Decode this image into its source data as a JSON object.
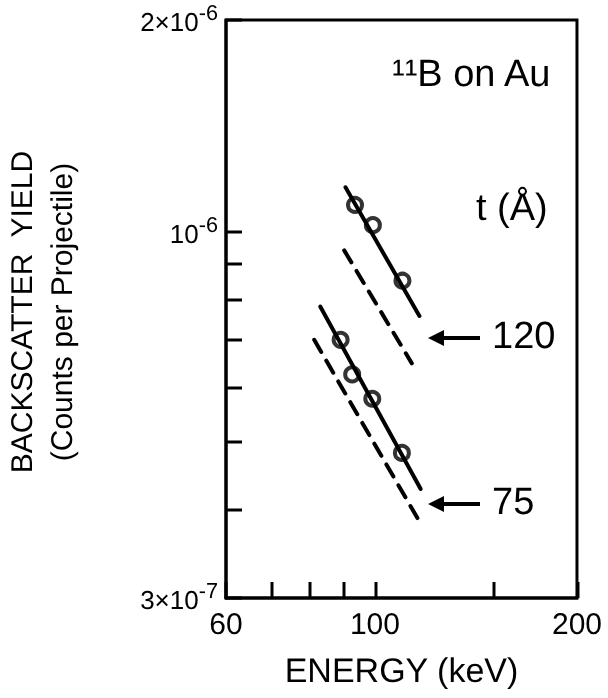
{
  "chart_data": {
    "type": "scatter",
    "xlabel": "ENERGY (keV)",
    "ylabel": "BACKSCATTER  YIELD\n(Counts per Projectile)",
    "log": "xy",
    "grid": false,
    "xlim": [
      60,
      200
    ],
    "xticks": [
      60,
      {
        "value": 70,
        "label": null
      },
      {
        "value": 80,
        "label": null
      },
      {
        "value": 90,
        "label": null
      },
      100,
      {
        "value": 150,
        "label": null
      },
      200
    ],
    "ylim": [
      3e-07,
      2e-06
    ],
    "yticks": [
      {
        "value": 3e-07,
        "label": "3×10$^{-7}$"
      },
      {
        "value": 4e-07,
        "label": null
      },
      {
        "value": 5e-07,
        "label": null
      },
      {
        "value": 6e-07,
        "label": null
      },
      {
        "value": 7e-07,
        "label": null
      },
      {
        "value": 8e-07,
        "label": null
      },
      {
        "value": 9e-07,
        "label": null
      },
      {
        "value": 1e-06,
        "label": "10$^{-6}$"
      },
      {
        "value": 2e-06,
        "label": "2×10$^{-6}$"
      }
    ],
    "series": [
      {
        "color": "#000000",
        "marker": "circle",
        "x": [
          93.4,
          99.3,
          109.9
        ],
        "values": [
          1.09e-06,
          1.02e-06,
          8.5e-07
        ]
      },
      {
        "color": "#000000",
        "marker": "circle",
        "x": [
          88.9,
          92.5,
          99.1,
          109.7
        ],
        "values": [
          7e-07,
          6.25e-07,
          5.77e-07,
          4.83e-07
        ]
      },
      {
        "type": "line",
        "color": "#000000",
        "marker": "none",
        "line_style": "solid",
        "x": [
          90.4,
          116.5
        ],
        "values": [
          1.155e-06,
          7.57e-07
        ]
      },
      {
        "type": "line",
        "color": "#000000",
        "marker": "none",
        "line_style": "solid",
        "x": [
          82.9,
          117
        ],
        "values": [
          7.81e-07,
          4.29e-07
        ]
      },
      {
        "type": "line",
        "color": "#000000",
        "marker": "none",
        "line_style": "dashed",
        "x": [
          90.0,
          113.5
        ],
        "values": [
          9.39e-07,
          6.48e-07
        ]
      },
      {
        "type": "line",
        "color": "#000000",
        "marker": "none",
        "line_style": "dashed",
        "x": [
          81.2,
          115.7
        ],
        "values": [
          7e-07,
          3.9e-07
        ]
      }
    ],
    "annotations": [
      "¹¹B  on  Au",
      "t (Å)",
      "120",
      "75"
    ]
  }
}
